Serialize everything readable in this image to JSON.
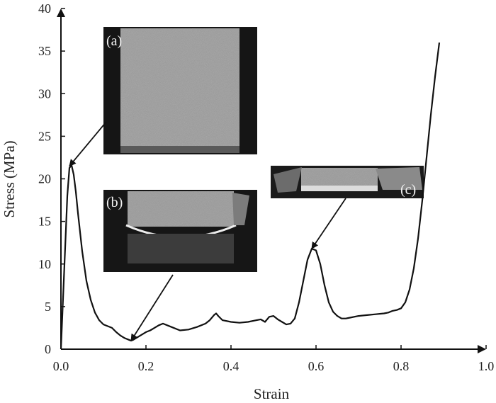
{
  "chart_data": {
    "type": "line",
    "xlabel": "Strain",
    "ylabel": "Stress (MPa)",
    "xlim": [
      0.0,
      1.0
    ],
    "ylim": [
      0,
      40
    ],
    "x_ticks": [
      "0.0",
      "0.2",
      "0.4",
      "0.6",
      "0.8",
      "1.0"
    ],
    "y_ticks": [
      "0",
      "5",
      "10",
      "15",
      "20",
      "25",
      "30",
      "35",
      "40"
    ],
    "grid": false,
    "series": [
      {
        "color": "#111111",
        "x": [
          0.0,
          0.005,
          0.01,
          0.015,
          0.02,
          0.025,
          0.03,
          0.035,
          0.04,
          0.05,
          0.06,
          0.07,
          0.08,
          0.09,
          0.1,
          0.11,
          0.12,
          0.13,
          0.14,
          0.15,
          0.16,
          0.165,
          0.17,
          0.18,
          0.19,
          0.2,
          0.21,
          0.22,
          0.23,
          0.24,
          0.26,
          0.28,
          0.3,
          0.32,
          0.34,
          0.35,
          0.36,
          0.365,
          0.37,
          0.38,
          0.4,
          0.42,
          0.44,
          0.46,
          0.47,
          0.48,
          0.49,
          0.5,
          0.51,
          0.52,
          0.53,
          0.54,
          0.55,
          0.56,
          0.57,
          0.58,
          0.59,
          0.6,
          0.61,
          0.62,
          0.63,
          0.64,
          0.65,
          0.66,
          0.67,
          0.68,
          0.7,
          0.72,
          0.74,
          0.76,
          0.77,
          0.78,
          0.79,
          0.8,
          0.81,
          0.82,
          0.83,
          0.84,
          0.85,
          0.86,
          0.87,
          0.88,
          0.89
        ],
        "y": [
          0.0,
          6.0,
          12.0,
          18.0,
          21.3,
          21.6,
          20.5,
          18.5,
          16.0,
          11.5,
          8.0,
          5.8,
          4.3,
          3.4,
          2.9,
          2.7,
          2.5,
          2.0,
          1.6,
          1.3,
          1.1,
          1.0,
          1.1,
          1.4,
          1.7,
          2.0,
          2.2,
          2.5,
          2.8,
          3.0,
          2.6,
          2.2,
          2.3,
          2.6,
          3.0,
          3.4,
          4.0,
          4.2,
          3.9,
          3.4,
          3.2,
          3.1,
          3.2,
          3.4,
          3.5,
          3.2,
          3.8,
          3.9,
          3.5,
          3.2,
          2.9,
          3.0,
          3.6,
          5.5,
          8.0,
          10.5,
          11.8,
          11.6,
          10.0,
          7.5,
          5.5,
          4.4,
          3.9,
          3.6,
          3.6,
          3.7,
          3.9,
          4.0,
          4.1,
          4.2,
          4.3,
          4.5,
          4.6,
          4.8,
          5.5,
          7.0,
          9.5,
          13.0,
          17.5,
          22.5,
          27.5,
          32.0,
          36.0
        ]
      }
    ],
    "insets": [
      {
        "label": "(a)",
        "points_to": {
          "x": 0.02,
          "y": 21.5
        }
      },
      {
        "label": "(b)",
        "points_to": {
          "x": 0.165,
          "y": 1.0
        }
      },
      {
        "label": "(c)",
        "points_to": {
          "x": 0.59,
          "y": 11.8
        }
      }
    ]
  }
}
